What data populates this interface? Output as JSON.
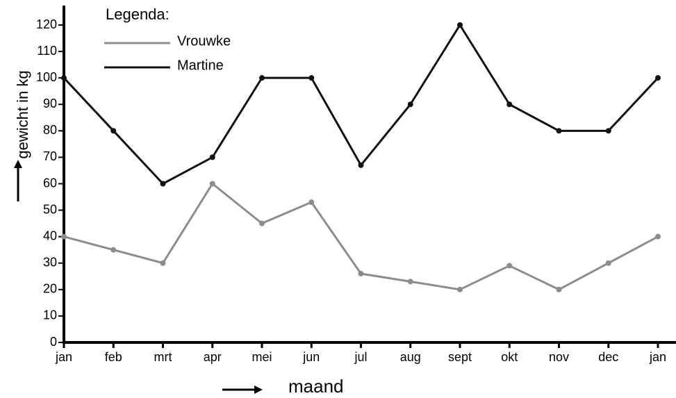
{
  "chart_data": {
    "type": "line",
    "legend_title": "Legenda:",
    "y_label": "gewicht in kg",
    "x_label": "maand",
    "categories": [
      "jan",
      "feb",
      "mrt",
      "apr",
      "mei",
      "jun",
      "jul",
      "aug",
      "sept",
      "okt",
      "nov",
      "dec",
      "jan"
    ],
    "series": [
      {
        "name": "Vrouwke",
        "color": "#8c8c8c",
        "values": [
          40,
          35,
          30,
          60,
          45,
          53,
          26,
          23,
          20,
          29,
          20,
          30,
          40
        ]
      },
      {
        "name": "Martine",
        "color": "#111111",
        "values": [
          100,
          80,
          60,
          70,
          100,
          100,
          67,
          90,
          120,
          90,
          80,
          80,
          100
        ]
      }
    ],
    "ylim": [
      0,
      120
    ],
    "yticks": [
      0,
      10,
      20,
      30,
      40,
      50,
      60,
      70,
      80,
      90,
      100,
      110,
      120
    ],
    "legend": "upper left"
  }
}
